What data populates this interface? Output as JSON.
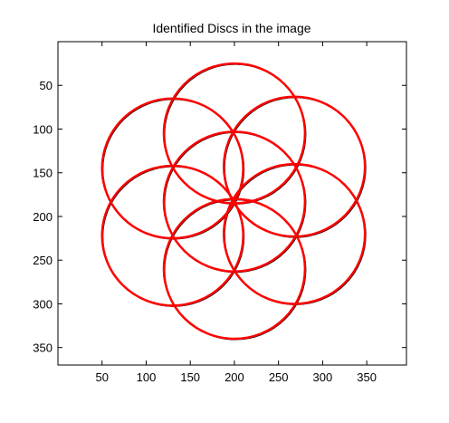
{
  "chart_data": {
    "type": "scatter",
    "title": "Identified Discs in the image",
    "xlabel": "",
    "ylabel": "",
    "xlim": [
      0,
      395
    ],
    "ylim": [
      0,
      370
    ],
    "y_reversed": true,
    "xticks": [
      50,
      100,
      150,
      200,
      250,
      300,
      350
    ],
    "yticks": [
      50,
      100,
      150,
      200,
      250,
      300,
      350
    ],
    "grid": false,
    "legend": "none",
    "colors": {
      "detected": "#ff0000",
      "original": "#000000"
    },
    "circles": [
      {
        "cx": 200,
        "cy": 105,
        "r": 80
      },
      {
        "cx": 268,
        "cy": 143,
        "r": 80
      },
      {
        "cx": 268,
        "cy": 220,
        "r": 80
      },
      {
        "cx": 200,
        "cy": 260,
        "r": 80
      },
      {
        "cx": 130,
        "cy": 222,
        "r": 80
      },
      {
        "cx": 130,
        "cy": 145,
        "r": 80
      },
      {
        "cx": 200,
        "cy": 183,
        "r": 80
      }
    ]
  }
}
